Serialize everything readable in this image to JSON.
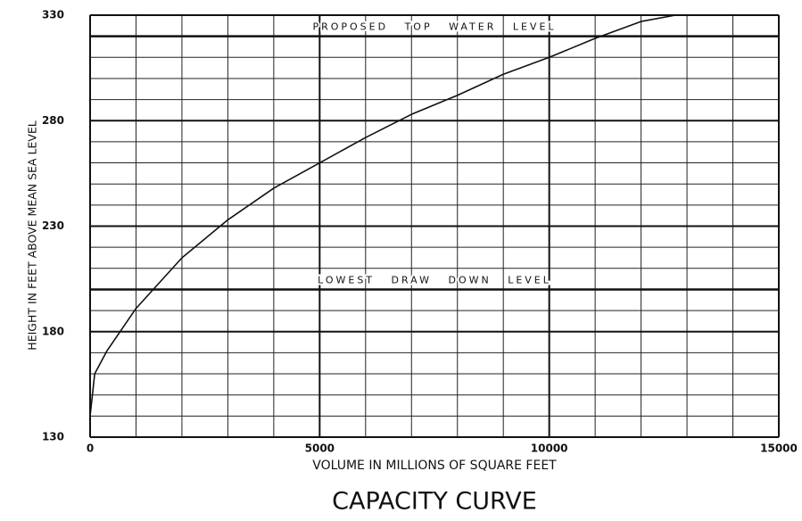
{
  "chart_data": {
    "type": "line",
    "title": "CAPACITY CURVE",
    "xlabel": "VOLUME IN MILLIONS OF SQUARE FEET",
    "ylabel": "HEIGHT IN FEET ABOVE MEAN SEA LEVEL",
    "xlim": [
      0,
      15000
    ],
    "ylim": [
      130,
      330
    ],
    "xticks": [
      0,
      5000,
      10000,
      15000
    ],
    "yticks": [
      130,
      180,
      230,
      280,
      330
    ],
    "x_minor_grid": [
      1000,
      2000,
      3000,
      4000,
      6000,
      7000,
      8000,
      9000,
      11000,
      12000,
      13000,
      14000
    ],
    "y_minor_grid": [
      140,
      150,
      160,
      170,
      190,
      200,
      210,
      220,
      240,
      250,
      260,
      270,
      290,
      300,
      310,
      320
    ],
    "grid": true,
    "annotations": [
      {
        "text": "PROPOSED TOP WATER LEVEL",
        "y": 320
      },
      {
        "text": "LOWEST DRAW DOWN LEVEL",
        "y": 200
      }
    ],
    "series": [
      {
        "name": "Capacity",
        "color": "#111111",
        "x": [
          0,
          100,
          370,
          1000,
          2000,
          3000,
          4000,
          5000,
          6000,
          7000,
          8000,
          9000,
          10000,
          11000,
          12000,
          12750
        ],
        "values": [
          140,
          160,
          171,
          191,
          215,
          233,
          248,
          260,
          272,
          283,
          292,
          302,
          310,
          319,
          327,
          330
        ]
      }
    ]
  }
}
